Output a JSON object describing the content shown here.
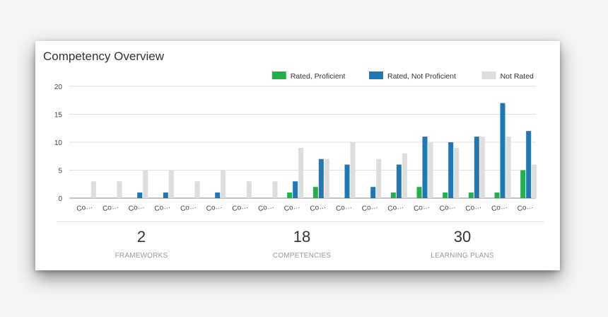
{
  "card": {
    "title": "Competency Overview"
  },
  "chart_data": {
    "type": "bar",
    "categories": [
      "Co…",
      "Co…",
      "Co…",
      "Co…",
      "Co…",
      "Co…",
      "Co…",
      "Co…",
      "Co…",
      "Co…",
      "Co…",
      "Co…",
      "Co…",
      "Co…",
      "Co…",
      "Co…",
      "Co…",
      "Co…"
    ],
    "series": [
      {
        "name": "Rated, Proficient",
        "color": "#22b04b",
        "values": [
          0,
          0,
          0,
          0,
          0,
          0,
          0,
          0,
          1,
          2,
          0,
          0,
          1,
          2,
          1,
          1,
          1,
          5
        ]
      },
      {
        "name": "Rated, Not Proficient",
        "color": "#1f77b4",
        "values": [
          0,
          0,
          1,
          1,
          0,
          1,
          0,
          0,
          3,
          7,
          6,
          2,
          6,
          11,
          10,
          11,
          17,
          12
        ]
      },
      {
        "name": "Not Rated",
        "color": "#dddddd",
        "values": [
          3,
          3,
          5,
          5,
          3,
          5,
          3,
          3,
          9,
          7,
          10,
          7,
          8,
          10,
          9,
          11,
          11,
          6
        ]
      }
    ],
    "yticks": [
      0,
      5,
      10,
      15,
      20
    ],
    "ylim": [
      0,
      20
    ],
    "legend_position": "top-right",
    "grid": true
  },
  "stats": [
    {
      "value": "2",
      "label": "FRAMEWORKS"
    },
    {
      "value": "18",
      "label": "COMPETENCIES"
    },
    {
      "value": "30",
      "label": "LEARNING PLANS"
    }
  ]
}
